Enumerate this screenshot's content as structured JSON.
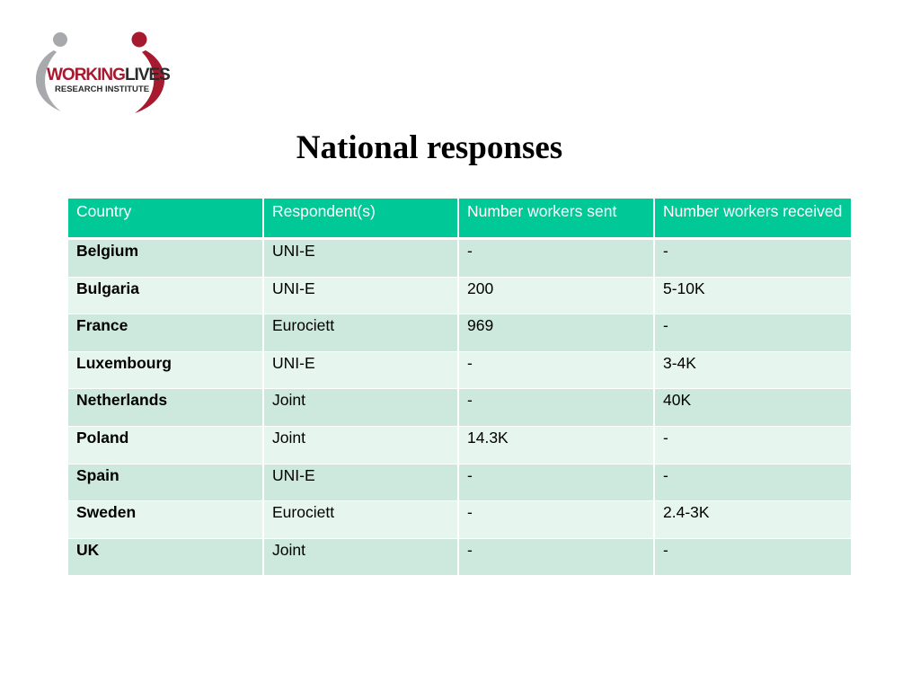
{
  "logo": {
    "name_part1": "WORKING",
    "name_part2": "LIVES",
    "subtitle": "RESEARCH INSTITUTE",
    "colors": {
      "grey": "#a7a9ac",
      "red": "#a6192e",
      "dark": "#2a2a2a"
    }
  },
  "title": "National responses",
  "table": {
    "headers": [
      "Country",
      "Respondent(s)",
      "Number workers sent",
      "Number workers received"
    ],
    "rows": [
      [
        "Belgium",
        "UNI-E",
        "-",
        "-"
      ],
      [
        "Bulgaria",
        "UNI-E",
        "200",
        "5-10K"
      ],
      [
        "France",
        "Eurociett",
        "969",
        "-"
      ],
      [
        "Luxembourg",
        "UNI-E",
        "-",
        "3-4K"
      ],
      [
        "Netherlands",
        "Joint",
        "-",
        "40K"
      ],
      [
        "Poland",
        "Joint",
        "14.3K",
        "-"
      ],
      [
        "Spain",
        "UNI-E",
        "-",
        "-"
      ],
      [
        "Sweden",
        "Eurociett",
        "-",
        "2.4-3K"
      ],
      [
        "UK",
        "Joint",
        "-",
        "-"
      ]
    ],
    "colors": {
      "header_bg": "#00c896",
      "row_dark": "#cde9de",
      "row_light": "#e7f5ef"
    }
  }
}
